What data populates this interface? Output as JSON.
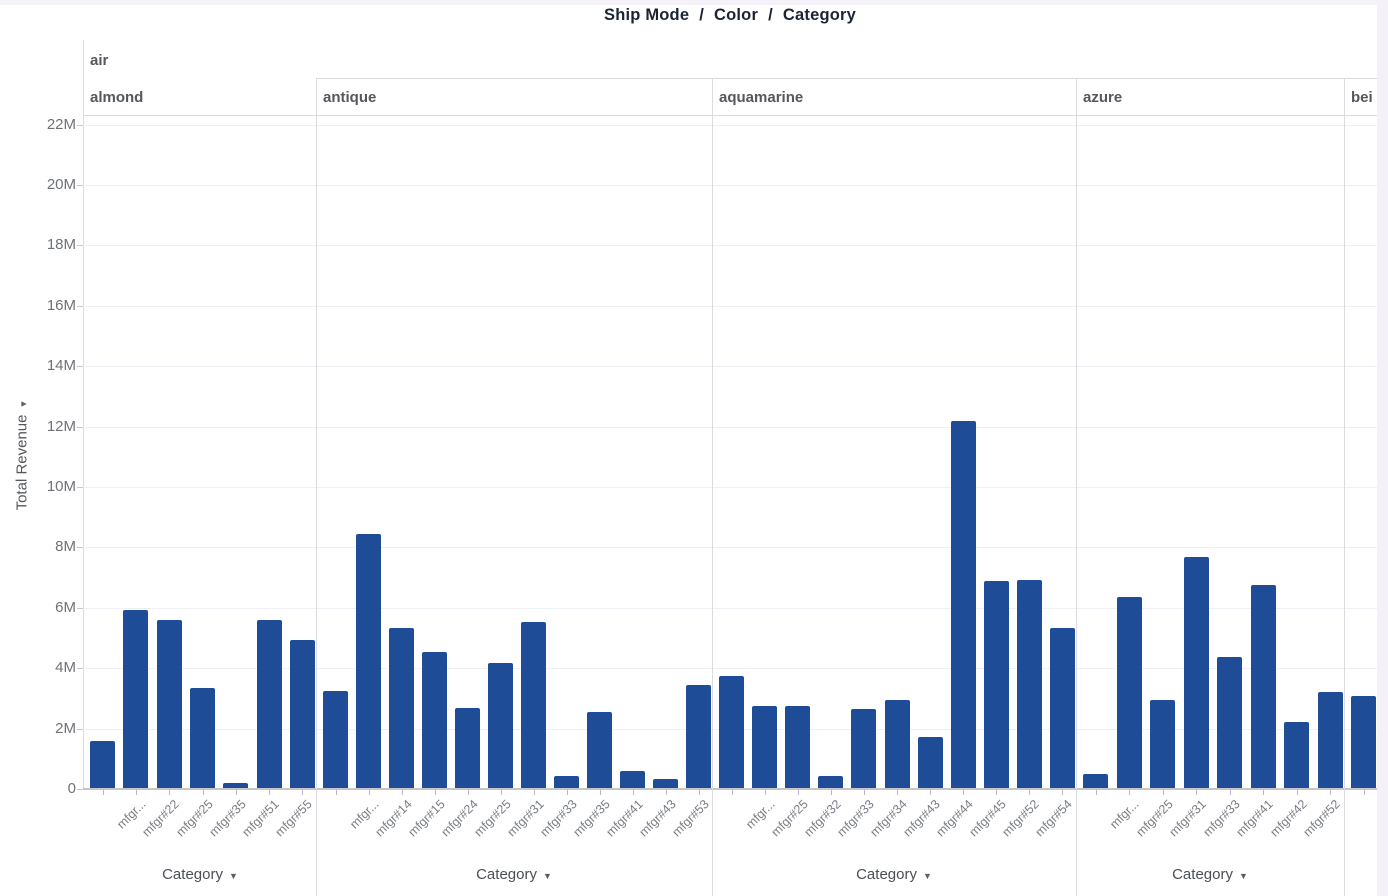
{
  "chart_data": {
    "type": "bar",
    "title_breadcrumb": [
      "Ship Mode",
      "Color",
      "Category"
    ],
    "separator": "/",
    "row_facet_value": "air",
    "ylabel": "Total Revenue",
    "category_label": "Category",
    "ylim": [
      0,
      22400000
    ],
    "ytick_labels": [
      "0",
      "2M",
      "4M",
      "6M",
      "8M",
      "10M",
      "12M",
      "14M",
      "16M",
      "18M",
      "20M",
      "22M"
    ],
    "grid": true,
    "legend": "none",
    "bar_color": "#1f4c96",
    "panels": [
      {
        "header": "almond",
        "category_control_visible": true,
        "bars": [
          {
            "label": "",
            "value": 1550000
          },
          {
            "label": "mfgr...",
            "value": 5900000
          },
          {
            "label": "mfgr#22",
            "value": 5550000
          },
          {
            "label": "mfgr#25",
            "value": 3300000
          },
          {
            "label": "mfgr#35",
            "value": 180000
          },
          {
            "label": "mfgr#51",
            "value": 5550000
          },
          {
            "label": "mfgr#55",
            "value": 4900000
          }
        ]
      },
      {
        "header": "antique",
        "category_control_visible": true,
        "bars": [
          {
            "label": "",
            "value": 3200000
          },
          {
            "label": "mfgr...",
            "value": 8400000
          },
          {
            "label": "mfgr#14",
            "value": 5300000
          },
          {
            "label": "mfgr#15",
            "value": 4500000
          },
          {
            "label": "mfgr#24",
            "value": 2650000
          },
          {
            "label": "mfgr#25",
            "value": 4150000
          },
          {
            "label": "mfgr#31",
            "value": 5500000
          },
          {
            "label": "mfgr#33",
            "value": 400000
          },
          {
            "label": "mfgr#35",
            "value": 2500000
          },
          {
            "label": "mfgr#41",
            "value": 550000
          },
          {
            "label": "mfgr#43",
            "value": 300000
          },
          {
            "label": "mfgr#53",
            "value": 3400000
          }
        ]
      },
      {
        "header": "aquamarine",
        "category_control_visible": true,
        "bars": [
          {
            "label": "",
            "value": 3700000
          },
          {
            "label": "mfgr...",
            "value": 2700000
          },
          {
            "label": "mfgr#25",
            "value": 2700000
          },
          {
            "label": "mfgr#32",
            "value": 400000
          },
          {
            "label": "mfgr#33",
            "value": 2600000
          },
          {
            "label": "mfgr#34",
            "value": 2900000
          },
          {
            "label": "mfgr#43",
            "value": 1700000
          },
          {
            "label": "mfgr#44",
            "value": 12150000
          },
          {
            "label": "mfgr#45",
            "value": 6850000
          },
          {
            "label": "mfgr#52",
            "value": 6900000
          },
          {
            "label": "mfgr#54",
            "value": 5300000
          }
        ]
      },
      {
        "header": "azure",
        "category_control_visible": true,
        "bars": [
          {
            "label": "",
            "value": 450000
          },
          {
            "label": "mfgr...",
            "value": 6330000
          },
          {
            "label": "mfgr#25",
            "value": 2930000
          },
          {
            "label": "mfgr#31",
            "value": 7640000
          },
          {
            "label": "mfgr#33",
            "value": 4350000
          },
          {
            "label": "mfgr#41",
            "value": 6730000
          },
          {
            "label": "mfgr#42",
            "value": 2180000
          },
          {
            "label": "mfgr#52",
            "value": 3180000
          }
        ]
      },
      {
        "header": "bei",
        "category_control_visible": false,
        "bars": [
          {
            "label": "",
            "value": 3050000
          }
        ]
      }
    ]
  }
}
